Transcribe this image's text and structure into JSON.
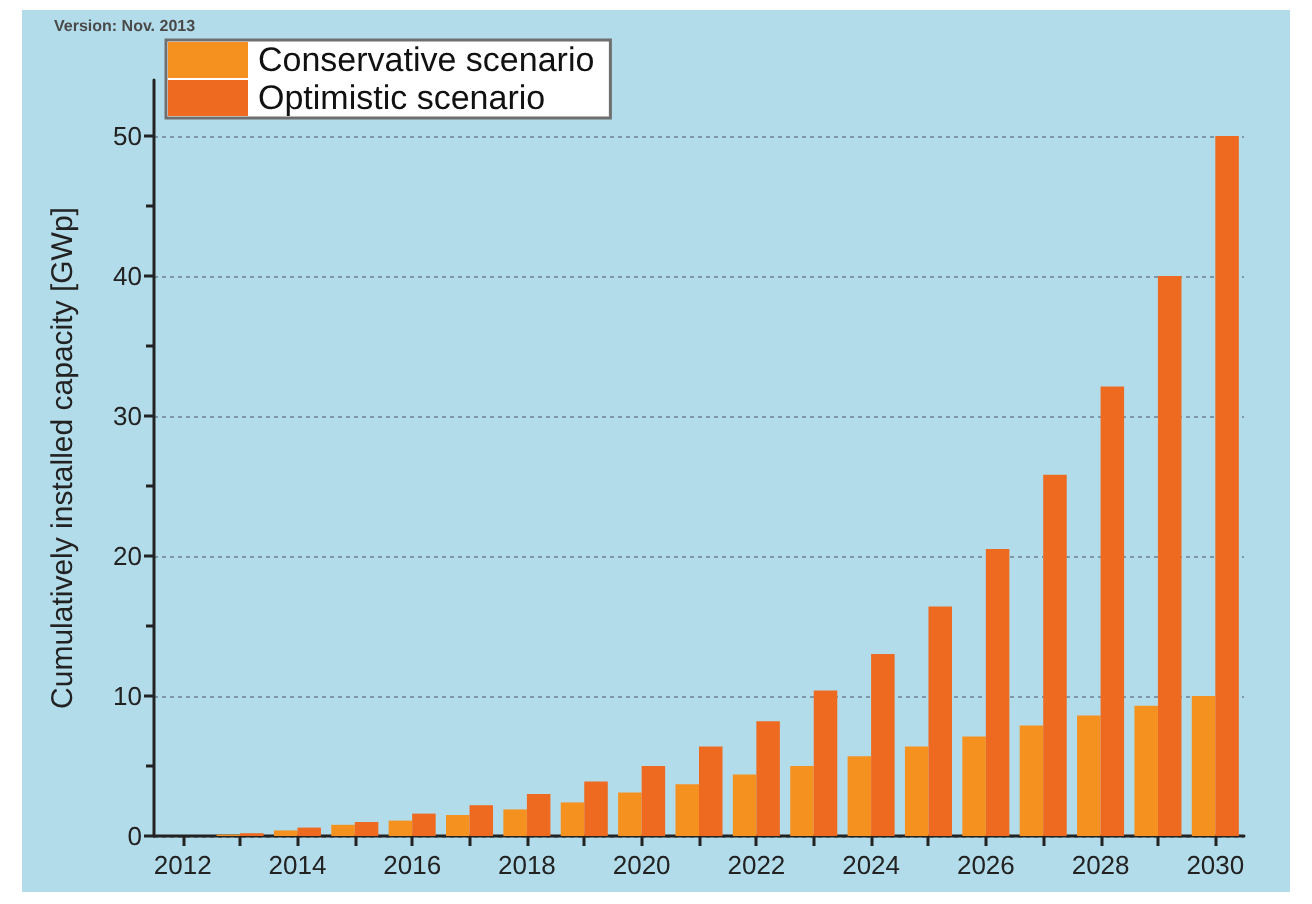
{
  "chart_data": {
    "type": "bar",
    "ylabel": "Cumulatively installed capacity [GWp]",
    "annotations": [
      "Version: Nov. 2013"
    ],
    "categories": [
      "2012",
      null,
      "2014",
      null,
      "2016",
      null,
      "2018",
      null,
      "2020",
      null,
      "2022",
      null,
      "2024",
      null,
      "2026",
      null,
      "2028",
      null,
      "2030"
    ],
    "series": [
      {
        "name": "Conservative scenario",
        "color": "#f5921f",
        "values": [
          null,
          0.1,
          0.4,
          0.8,
          1.1,
          1.5,
          1.9,
          2.4,
          3.1,
          3.7,
          4.4,
          5.0,
          5.7,
          6.4,
          7.1,
          7.9,
          8.6,
          9.3,
          10.0
        ]
      },
      {
        "name": "Optimistic scenario",
        "color": "#ee6a21",
        "values": [
          null,
          0.2,
          0.6,
          1.0,
          1.6,
          2.2,
          3.0,
          3.9,
          5.0,
          6.4,
          8.2,
          10.4,
          13.0,
          16.4,
          20.5,
          25.8,
          32.1,
          40.0,
          50.0
        ]
      }
    ],
    "ylim": [
      0,
      54
    ],
    "yticks": [
      0,
      {
        "value": 5,
        "label": null
      },
      10,
      {
        "value": 15,
        "label": null
      },
      20,
      {
        "value": 25,
        "label": null
      },
      30,
      {
        "value": 35,
        "label": null
      },
      40,
      {
        "value": 45,
        "label": null
      },
      50
    ],
    "grid": "y",
    "legend": "top left"
  }
}
